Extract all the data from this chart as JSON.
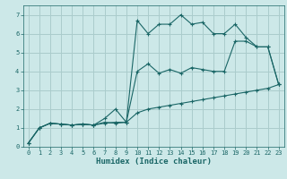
{
  "xlabel": "Humidex (Indice chaleur)",
  "xlim": [
    -0.5,
    23.5
  ],
  "ylim": [
    0,
    7.5
  ],
  "xticks": [
    0,
    1,
    2,
    3,
    4,
    5,
    6,
    7,
    8,
    9,
    10,
    11,
    12,
    13,
    14,
    15,
    16,
    17,
    18,
    19,
    20,
    21,
    22,
    23
  ],
  "yticks": [
    0,
    1,
    2,
    3,
    4,
    5,
    6,
    7
  ],
  "background_color": "#cce8e8",
  "grid_color": "#aacccc",
  "line_color": "#1a6666",
  "series": [
    {
      "x": [
        0,
        1,
        2,
        3,
        4,
        5,
        6,
        7,
        8,
        9,
        10,
        11,
        12,
        13,
        14,
        15,
        16,
        17,
        18,
        19,
        20,
        21,
        22,
        23
      ],
      "y": [
        0.2,
        1.0,
        1.25,
        1.2,
        1.15,
        1.2,
        1.15,
        1.3,
        1.25,
        1.3,
        6.7,
        6.0,
        6.5,
        6.5,
        7.0,
        6.5,
        6.6,
        6.0,
        6.0,
        6.5,
        5.8,
        5.3,
        5.3,
        3.3
      ]
    },
    {
      "x": [
        0,
        1,
        2,
        3,
        4,
        5,
        6,
        7,
        8,
        9,
        10,
        11,
        12,
        13,
        14,
        15,
        16,
        17,
        18,
        19,
        20,
        21,
        22,
        23
      ],
      "y": [
        0.2,
        1.0,
        1.25,
        1.2,
        1.15,
        1.2,
        1.15,
        1.5,
        2.0,
        1.3,
        4.0,
        4.4,
        3.9,
        4.1,
        3.9,
        4.2,
        4.1,
        4.0,
        4.0,
        5.6,
        5.6,
        5.3,
        5.3,
        3.3
      ]
    },
    {
      "x": [
        0,
        1,
        2,
        3,
        4,
        5,
        6,
        7,
        8,
        9,
        10,
        11,
        12,
        13,
        14,
        15,
        16,
        17,
        18,
        19,
        20,
        21,
        22,
        23
      ],
      "y": [
        0.2,
        1.0,
        1.25,
        1.2,
        1.15,
        1.2,
        1.15,
        1.25,
        1.3,
        1.3,
        1.8,
        2.0,
        2.1,
        2.2,
        2.3,
        2.4,
        2.5,
        2.6,
        2.7,
        2.8,
        2.9,
        3.0,
        3.1,
        3.3
      ]
    }
  ]
}
